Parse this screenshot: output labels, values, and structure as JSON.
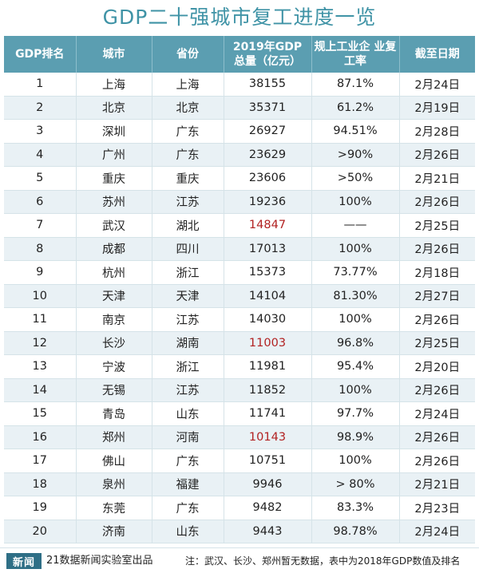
{
  "title": "GDP二十强城市复工进度一览",
  "columns": [
    "GDP排名",
    "城市",
    "省份",
    "2019年GDP 总量（亿元）",
    "规上工业企 业复工率",
    "截至日期"
  ],
  "rows": [
    {
      "rank": "1",
      "city": "上海",
      "province": "上海",
      "gdp": "38155",
      "rate": "87.1%",
      "date": "2月24日",
      "gdp_highlight": false
    },
    {
      "rank": "2",
      "city": "北京",
      "province": "北京",
      "gdp": "35371",
      "rate": "61.2%",
      "date": "2月19日",
      "gdp_highlight": false
    },
    {
      "rank": "3",
      "city": "深圳",
      "province": "广东",
      "gdp": "26927",
      "rate": "94.51%",
      "date": "2月28日",
      "gdp_highlight": false
    },
    {
      "rank": "4",
      "city": "广州",
      "province": "广东",
      "gdp": "23629",
      "rate": ">90%",
      "date": "2月26日",
      "gdp_highlight": false
    },
    {
      "rank": "5",
      "city": "重庆",
      "province": "重庆",
      "gdp": "23606",
      "rate": ">50%",
      "date": "2月21日",
      "gdp_highlight": false
    },
    {
      "rank": "6",
      "city": "苏州",
      "province": "江苏",
      "gdp": "19236",
      "rate": "100%",
      "date": "2月26日",
      "gdp_highlight": false
    },
    {
      "rank": "7",
      "city": "武汉",
      "province": "湖北",
      "gdp": "14847",
      "rate": "——",
      "date": "2月25日",
      "gdp_highlight": true
    },
    {
      "rank": "8",
      "city": "成都",
      "province": "四川",
      "gdp": "17013",
      "rate": "100%",
      "date": "2月26日",
      "gdp_highlight": false
    },
    {
      "rank": "9",
      "city": "杭州",
      "province": "浙江",
      "gdp": "15373",
      "rate": "73.77%",
      "date": "2月18日",
      "gdp_highlight": false
    },
    {
      "rank": "10",
      "city": "天津",
      "province": "天津",
      "gdp": "14104",
      "rate": "81.30%",
      "date": "2月27日",
      "gdp_highlight": false
    },
    {
      "rank": "11",
      "city": "南京",
      "province": "江苏",
      "gdp": "14030",
      "rate": "100%",
      "date": "2月26日",
      "gdp_highlight": false
    },
    {
      "rank": "12",
      "city": "长沙",
      "province": "湖南",
      "gdp": "11003",
      "rate": "96.8%",
      "date": "2月25日",
      "gdp_highlight": true
    },
    {
      "rank": "13",
      "city": "宁波",
      "province": "浙江",
      "gdp": "11981",
      "rate": "95.4%",
      "date": "2月20日",
      "gdp_highlight": false
    },
    {
      "rank": "14",
      "city": "无锡",
      "province": "江苏",
      "gdp": "11852",
      "rate": "100%",
      "date": "2月26日",
      "gdp_highlight": false
    },
    {
      "rank": "15",
      "city": "青岛",
      "province": "山东",
      "gdp": "11741",
      "rate": "97.7%",
      "date": "2月24日",
      "gdp_highlight": false
    },
    {
      "rank": "16",
      "city": "郑州",
      "province": "河南",
      "gdp": "10143",
      "rate": "98.9%",
      "date": "2月26日",
      "gdp_highlight": true
    },
    {
      "rank": "17",
      "city": "佛山",
      "province": "广东",
      "gdp": "10751",
      "rate": "100%",
      "date": "2月26日",
      "gdp_highlight": false
    },
    {
      "rank": "18",
      "city": "泉州",
      "province": "福建",
      "gdp": "9946",
      "rate": "> 80%",
      "date": "2月21日",
      "gdp_highlight": false
    },
    {
      "rank": "19",
      "city": "东莞",
      "province": "广东",
      "gdp": "9482",
      "rate": "83.3%",
      "date": "2月23日",
      "gdp_highlight": false
    },
    {
      "rank": "20",
      "city": "济南",
      "province": "山东",
      "gdp": "9443",
      "rate": "98.78%",
      "date": "2月24日",
      "gdp_highlight": false
    }
  ],
  "footer": {
    "logo_text": "21数据新闻实验室",
    "logo_mark": "新闻",
    "producer": "21数据新闻实验室出品",
    "note": "注：武汉、长沙、郑州暂无数据，表中为2018年GDP数值及排名"
  },
  "colors": {
    "title": "#3f93a6",
    "header_bg": "#5b9eb1",
    "alt_row_bg": "#e9f1f5",
    "highlight_text": "#b22222"
  }
}
